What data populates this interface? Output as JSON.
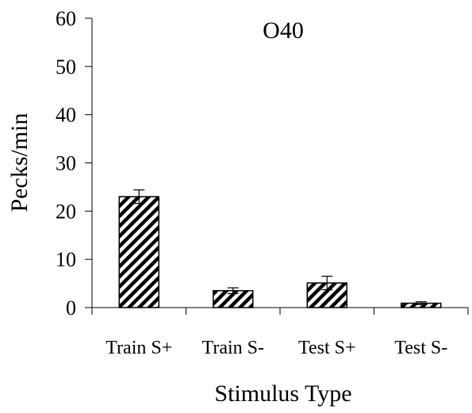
{
  "chart_data": {
    "type": "bar",
    "title": "O40",
    "xlabel": "Stimulus Type",
    "ylabel": "Pecks/min",
    "categories": [
      "Train S+",
      "Train S-",
      "Test S+",
      "Test S-"
    ],
    "values": [
      23,
      3.5,
      5.1,
      0.9
    ],
    "error": [
      1.4,
      0.6,
      1.4,
      0.3
    ],
    "ylim": [
      0,
      60
    ],
    "yticks": [
      0,
      10,
      20,
      30,
      40,
      50,
      60
    ],
    "grid": false,
    "legend": "none",
    "bar_fill": "diagonal-hatch",
    "bar_color": "#000000"
  }
}
